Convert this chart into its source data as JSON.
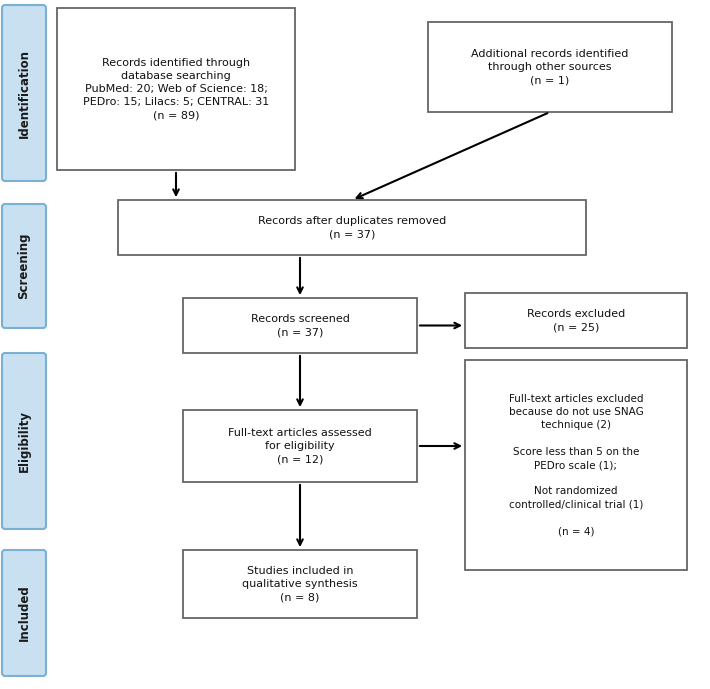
{
  "sidebar_labels": [
    "Identification",
    "Screening",
    "Eligibility",
    "Included"
  ],
  "sidebar_color": "#c8e0f0",
  "sidebar_border": "#7ab0d4",
  "sidebar_text_color": "#1a1a1a",
  "box_color": "#ffffff",
  "box_border": "#666666",
  "box_text_color": "#111111",
  "boxes": {
    "box1": "Records identified through\ndatabase searching\nPubMed: 20; Web of Science: 18;\nPEDro: 15; Lilacs: 5; CENTRAL: 31\n(n = 89)",
    "box2": "Additional records identified\nthrough other sources\n(n = 1)",
    "box3": "Records after duplicates removed\n(n = 37)",
    "box4": "Records screened\n(n = 37)",
    "box5": "Records excluded\n(n = 25)",
    "box6": "Full-text articles assessed\nfor eligibility\n(n = 12)",
    "box7": "Full-text articles excluded\nbecause do not use SNAG\ntechnique (2)\n\nScore less than 5 on the\nPEDro scale (1);\n\nNot randomized\ncontrolled/clinical trial (1)\n\n(n = 4)",
    "box8": "Studies included in\nqualitative synthesis\n(n = 8)"
  },
  "fontsize": 8.0,
  "sidebar_fontsize": 8.5,
  "fig_width": 7.1,
  "fig_height": 6.89,
  "dpi": 100
}
